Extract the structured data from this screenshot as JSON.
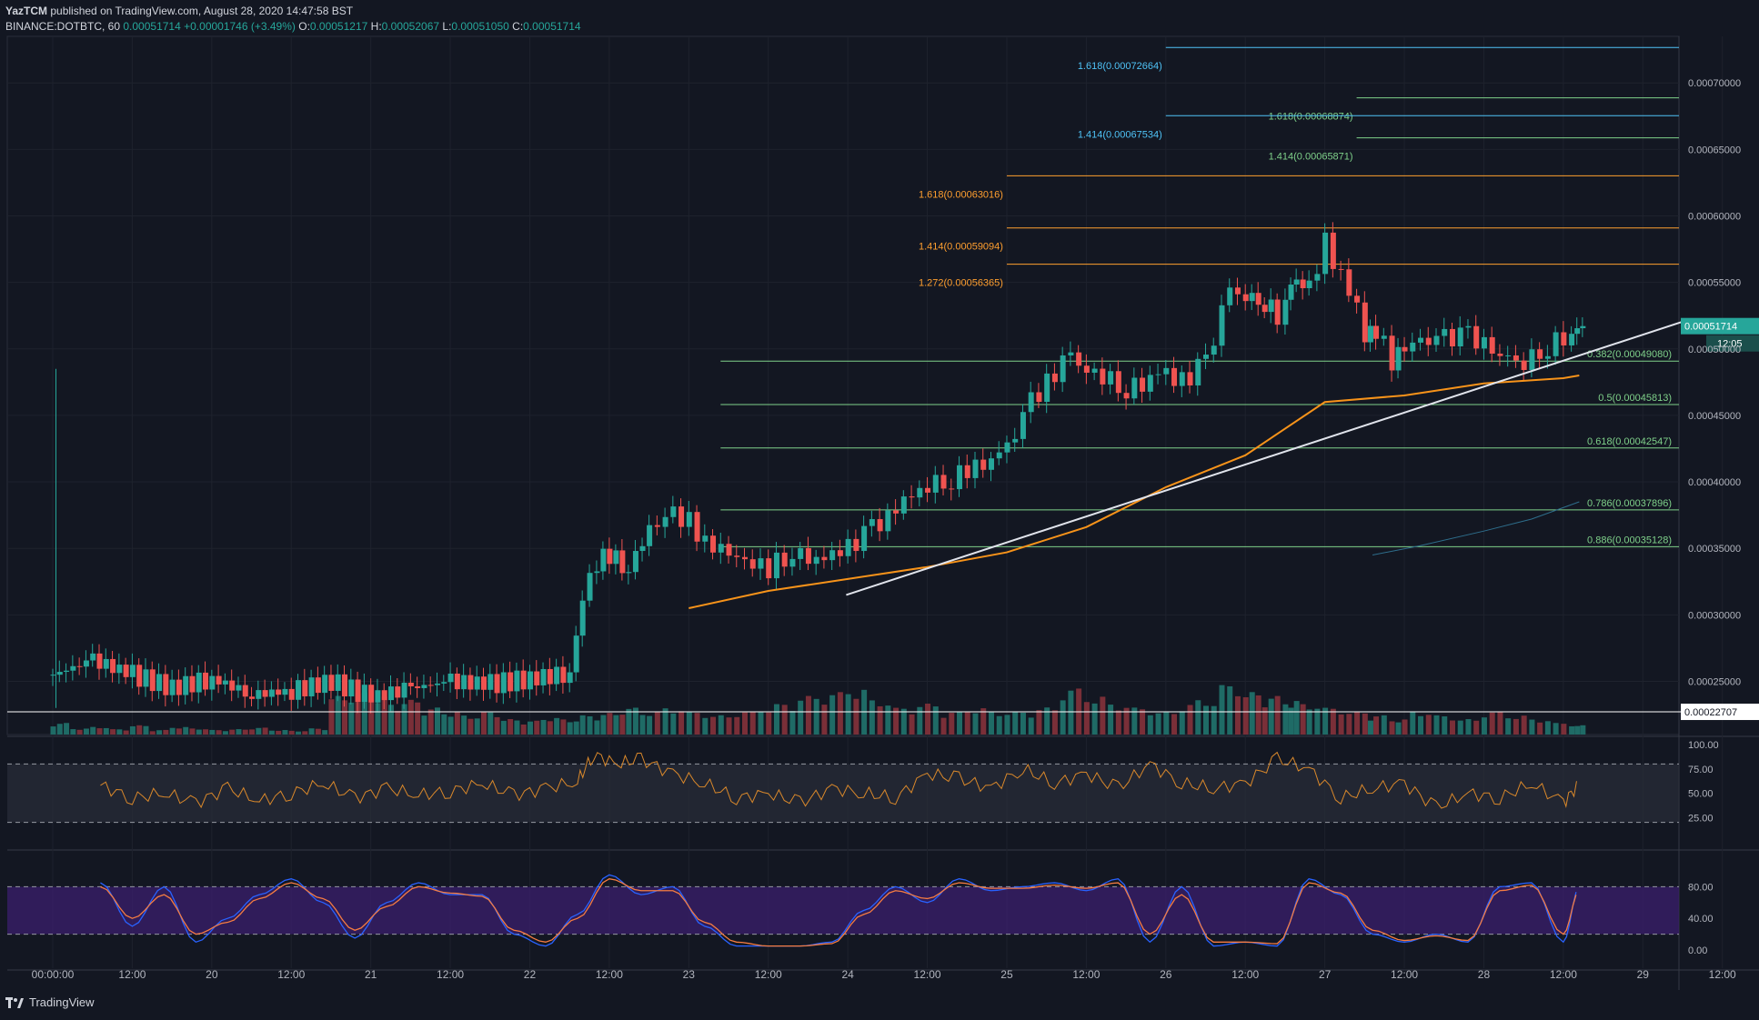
{
  "header": {
    "publisher": "YazTCM",
    "published_text": "published on TradingView.com, August 28, 2020 14:47:58 BST",
    "symbol": "BINANCE:DOTBTC, 60",
    "last": "0.00051714",
    "change": "+0.00001746 (+3.49%)",
    "o_label": "O:",
    "o_value": "0.00051217",
    "h_label": "H:",
    "h_value": "0.00052067",
    "l_label": "L:",
    "l_value": "0.00051050",
    "c_label": "C:",
    "c_value": "0.00051714"
  },
  "footer": {
    "brand": "TradingView"
  },
  "colors": {
    "background": "#131722",
    "up": "#26a69a",
    "down": "#ef5350",
    "vol_up": "#1f6b66",
    "vol_down": "#7a2f38",
    "fib_green": "#7fd18a",
    "fib_orange": "#ff9f2f",
    "fib_blue": "#4fc3f7",
    "ema": "#f7931a",
    "trendline": "#e0e3eb",
    "rsi": "#d9882b",
    "stoch_k": "#2962ff",
    "stoch_d": "#f57c42"
  },
  "chart_data": {
    "type": "candlestick",
    "y_axis": {
      "range": [
        0.00021,
        0.000735
      ],
      "ticks": [
        "0.00070000",
        "0.00065000",
        "0.00060000",
        "0.00055000",
        "0.00050000",
        "0.00045000",
        "0.00040000",
        "0.00035000",
        "0.00030000",
        "0.00025000"
      ],
      "tick_values": [
        0.0007,
        0.00065,
        0.0006,
        0.00055,
        0.0005,
        0.00045,
        0.0004,
        0.00035,
        0.0003,
        0.00025
      ]
    },
    "x_axis": {
      "range_days": [
        0,
        10.17
      ],
      "tick_labels": [
        "00:00:00",
        "12:00",
        "20",
        "12:00",
        "21",
        "12:00",
        "22",
        "12:00",
        "23",
        "12:00",
        "24",
        "12:00",
        "25",
        "12:00",
        "26",
        "12:00",
        "27",
        "12:00",
        "28",
        "12:00",
        "29",
        "12:00"
      ],
      "tick_days": [
        0.0,
        0.5,
        1.0,
        1.5,
        2.0,
        2.5,
        3.0,
        3.5,
        4.0,
        4.5,
        5.0,
        5.5,
        6.0,
        6.5,
        7.0,
        7.5,
        8.0,
        8.5,
        9.0,
        9.5,
        10.0,
        10.5
      ]
    },
    "price_series": {
      "name": "DOTBTC",
      "x_days": [
        0.0,
        0.25,
        0.5,
        0.75,
        1.0,
        1.25,
        1.5,
        1.75,
        2.0,
        2.25,
        2.5,
        2.75,
        3.0,
        3.25,
        3.33,
        3.42,
        3.5,
        3.62,
        3.75,
        3.9,
        4.0,
        4.1,
        4.25,
        4.4,
        4.5,
        4.65,
        4.75,
        4.9,
        5.0,
        5.15,
        5.25,
        5.4,
        5.5,
        5.65,
        5.75,
        5.9,
        6.0,
        6.15,
        6.25,
        6.4,
        6.5,
        6.6,
        6.75,
        6.85,
        6.95,
        7.0,
        7.1,
        7.25,
        7.4,
        7.5,
        7.62,
        7.7,
        7.75,
        7.82,
        7.9,
        8.0,
        8.1,
        8.2,
        8.25,
        8.32,
        8.42,
        8.5,
        8.6,
        8.75,
        8.9,
        9.0,
        9.1,
        9.25,
        9.4,
        9.5,
        9.55,
        9.62
      ],
      "close": [
        0.000255,
        0.000266,
        0.000255,
        0.000245,
        0.000252,
        0.00024,
        0.000243,
        0.00025,
        0.000238,
        0.000245,
        0.00025,
        0.000248,
        0.000252,
        0.000256,
        0.000315,
        0.00034,
        0.000345,
        0.000335,
        0.000365,
        0.000375,
        0.00037,
        0.000355,
        0.000345,
        0.00034,
        0.000335,
        0.000348,
        0.00034,
        0.000345,
        0.00035,
        0.000365,
        0.000375,
        0.00039,
        0.000398,
        0.000402,
        0.000408,
        0.000418,
        0.000425,
        0.00046,
        0.000475,
        0.000495,
        0.000485,
        0.00048,
        0.00047,
        0.000472,
        0.00048,
        0.00048,
        0.000475,
        0.00049,
        0.000545,
        0.00054,
        0.000535,
        0.000525,
        0.00054,
        0.00055,
        0.000545,
        0.00058,
        0.000555,
        0.000535,
        0.00051,
        0.000515,
        0.00049,
        0.0005,
        0.000505,
        0.000508,
        0.00051,
        0.000505,
        0.000496,
        0.00049,
        0.000502,
        0.000508,
        0.000512,
        0.00051714
      ]
    },
    "volume_series": {
      "note": "relative volume, 0-1",
      "values": [
        0.15,
        0.08,
        0.1,
        0.07,
        0.12,
        0.06,
        0.1,
        0.08,
        0.06,
        0.07,
        0.09,
        0.06,
        0.05,
        0.08,
        0.5,
        0.55,
        0.5,
        0.4,
        0.45,
        0.35,
        0.3,
        0.25,
        0.3,
        0.2,
        0.18,
        0.22,
        0.2,
        0.25,
        0.28,
        0.35,
        0.3,
        0.35,
        0.3,
        0.25,
        0.3,
        0.35,
        0.4,
        0.5,
        0.55,
        0.6,
        0.45,
        0.35,
        0.4,
        0.3,
        0.35,
        0.3,
        0.3,
        0.35,
        0.6,
        0.5,
        0.4,
        0.35,
        0.3,
        0.4,
        0.45,
        0.65,
        0.55,
        0.5,
        0.45,
        0.4,
        0.35,
        0.3,
        0.25,
        0.2,
        0.3,
        0.25,
        0.2,
        0.3,
        0.25,
        0.2,
        0.15,
        0.12
      ]
    },
    "ema_series": {
      "x_days": [
        4.0,
        4.5,
        5.0,
        5.5,
        6.0,
        6.5,
        7.0,
        7.5,
        8.0,
        8.5,
        9.0,
        9.5,
        9.6
      ],
      "values": [
        0.000305,
        0.000318,
        0.000327,
        0.000336,
        0.000347,
        0.000366,
        0.000396,
        0.00042,
        0.00046,
        0.000465,
        0.000474,
        0.000478,
        0.00048
      ]
    },
    "ema2_series": {
      "x_days": [
        8.3,
        8.6,
        9.0,
        9.3,
        9.6
      ],
      "values": [
        0.000345,
        0.000352,
        0.000363,
        0.000372,
        0.000385
      ]
    },
    "trendline": {
      "x_days": [
        4.99,
        10.29
      ],
      "values": [
        0.000315,
        0.000522
      ]
    },
    "fib_levels": [
      {
        "label": "1.618(0.00072664)",
        "value": 0.00072664,
        "group": "blue",
        "x_start": 7.0
      },
      {
        "label": "1.618(0.00068874)",
        "value": 0.00068874,
        "group": "green",
        "x_start": 8.2
      },
      {
        "label": "1.414(0.00067534)",
        "value": 0.00067534,
        "group": "blue",
        "x_start": 7.0
      },
      {
        "label": "1.414(0.00065871)",
        "value": 0.00065871,
        "group": "green",
        "x_start": 8.2
      },
      {
        "label": "1.618(0.00063016)",
        "value": 0.00063016,
        "group": "orange",
        "x_start": 6.0
      },
      {
        "label": "1.414(0.00059094)",
        "value": 0.00059094,
        "group": "orange",
        "x_start": 6.0
      },
      {
        "label": "1.272(0.00056365)",
        "value": 0.00056365,
        "group": "orange",
        "x_start": 6.0
      },
      {
        "label": "0.382(0.00049080)",
        "value": 0.0004908,
        "group": "green",
        "x_start": 4.2
      },
      {
        "label": "0.5(0.00045813)",
        "value": 0.00045813,
        "group": "green",
        "x_start": 4.2
      },
      {
        "label": "0.618(0.00042547)",
        "value": 0.00042547,
        "group": "green",
        "x_start": 4.2
      },
      {
        "label": "0.786(0.00037896)",
        "value": 0.00037896,
        "group": "green",
        "x_start": 4.2
      },
      {
        "label": "0.886(0.00035128)",
        "value": 0.00035128,
        "group": "green",
        "x_start": 4.2
      }
    ],
    "horizontal_line": {
      "value": 0.00022707,
      "label": "0.00022707"
    },
    "last_price_tag": {
      "value": 0.00051714,
      "label": "0.00051714",
      "countdown": "12:05"
    },
    "rsi": {
      "range": [
        0,
        100
      ],
      "ticks": [
        "100.00",
        "75.00",
        "50.00",
        "25.00"
      ],
      "tick_values": [
        100,
        75,
        50,
        25
      ],
      "band": [
        20,
        80
      ],
      "x_days": [
        0.3,
        0.5,
        0.7,
        0.9,
        1.1,
        1.3,
        1.5,
        1.7,
        1.9,
        2.1,
        2.3,
        2.5,
        2.7,
        2.9,
        3.1,
        3.3,
        3.4,
        3.55,
        3.7,
        3.9,
        4.1,
        4.3,
        4.5,
        4.7,
        4.9,
        5.1,
        5.3,
        5.5,
        5.7,
        5.9,
        6.1,
        6.3,
        6.5,
        6.7,
        6.9,
        7.1,
        7.3,
        7.5,
        7.7,
        7.9,
        8.1,
        8.3,
        8.5,
        8.7,
        8.9,
        9.1,
        9.3,
        9.5,
        9.6
      ],
      "values": [
        58,
        45,
        50,
        40,
        55,
        42,
        50,
        60,
        45,
        55,
        48,
        52,
        60,
        48,
        55,
        62,
        90,
        80,
        85,
        70,
        60,
        45,
        50,
        40,
        55,
        50,
        45,
        70,
        65,
        55,
        75,
        60,
        70,
        55,
        80,
        60,
        55,
        60,
        85,
        75,
        45,
        55,
        60,
        35,
        50,
        45,
        60,
        40,
        60
      ]
    },
    "stoch_rsi": {
      "range": [
        0,
        100
      ],
      "ticks": [
        "80.00",
        "40.00",
        "0.00"
      ],
      "tick_values": [
        80,
        40,
        0
      ],
      "band": [
        20,
        80
      ],
      "x_days": [
        0.3,
        0.5,
        0.7,
        0.9,
        1.1,
        1.3,
        1.5,
        1.7,
        1.9,
        2.1,
        2.3,
        2.5,
        2.7,
        2.9,
        3.1,
        3.3,
        3.5,
        3.7,
        3.9,
        4.1,
        4.3,
        4.5,
        4.7,
        4.9,
        5.1,
        5.3,
        5.5,
        5.7,
        5.9,
        6.1,
        6.3,
        6.5,
        6.7,
        6.9,
        7.1,
        7.3,
        7.5,
        7.7,
        7.9,
        8.1,
        8.3,
        8.5,
        8.7,
        8.9,
        9.1,
        9.3,
        9.5,
        9.6
      ],
      "k": [
        85,
        30,
        80,
        10,
        40,
        70,
        90,
        60,
        15,
        60,
        85,
        70,
        70,
        20,
        5,
        45,
        95,
        70,
        80,
        30,
        5,
        5,
        5,
        10,
        50,
        80,
        60,
        90,
        75,
        80,
        85,
        75,
        90,
        10,
        80,
        5,
        10,
        5,
        90,
        70,
        20,
        10,
        20,
        10,
        80,
        85,
        10,
        80
      ],
      "d": [
        80,
        40,
        70,
        20,
        35,
        65,
        85,
        65,
        25,
        55,
        80,
        72,
        68,
        25,
        10,
        40,
        90,
        75,
        75,
        35,
        10,
        5,
        5,
        8,
        45,
        75,
        65,
        85,
        78,
        78,
        82,
        78,
        85,
        20,
        70,
        10,
        10,
        8,
        85,
        72,
        25,
        12,
        18,
        12,
        75,
        82,
        20,
        75
      ]
    }
  }
}
